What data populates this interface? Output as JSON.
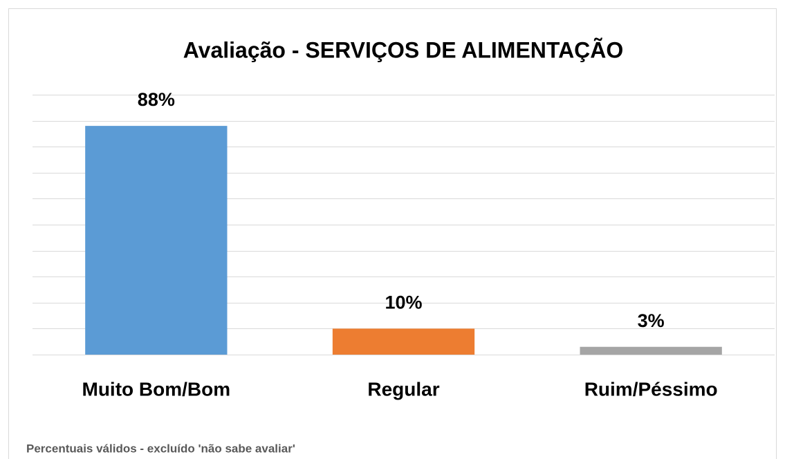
{
  "chart_data": {
    "type": "bar",
    "title": "Avaliação - SERVIÇOS DE ALIMENTAÇÃO",
    "categories": [
      "Muito Bom/Bom",
      "Regular",
      "Ruim/Péssimo"
    ],
    "values": [
      88,
      10,
      3
    ],
    "value_labels": [
      "88%",
      "10%",
      "3%"
    ],
    "colors": [
      "#5b9bd5",
      "#ed7d31",
      "#a5a5a5"
    ],
    "ylim": [
      0,
      100
    ],
    "yticks": [
      0,
      10,
      20,
      30,
      40,
      50,
      60,
      70,
      80,
      90,
      100
    ],
    "grid": true,
    "annotation": "Percentuais válidos - excluído 'não sabe avaliar'"
  }
}
